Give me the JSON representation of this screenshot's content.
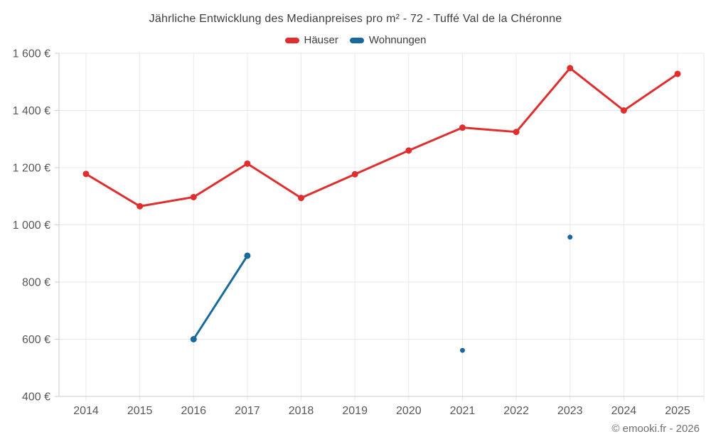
{
  "copyright": "© emooki.fr - 2026",
  "colors": {
    "hauser": "#e02e2e",
    "wohnungen": "#17699e",
    "grid": "#e8e8e8",
    "axis": "#cccccc",
    "axis_text": "#585858",
    "title_text": "#3c3c3c"
  },
  "chart_data": {
    "type": "line",
    "title": "Jährliche Entwicklung des Medianpreises pro m² - 72 - Tuffé Val de la Chéronne",
    "xlabel": "",
    "ylabel": "",
    "categories": [
      "2014",
      "2015",
      "2016",
      "2017",
      "2018",
      "2019",
      "2020",
      "2021",
      "2022",
      "2023",
      "2024",
      "2025"
    ],
    "series": [
      {
        "name": "Häuser",
        "color": "#e02e2e",
        "values": [
          1178,
          1065,
          1097,
          1214,
          1094,
          1177,
          1260,
          1340,
          1325,
          1548,
          1400,
          1528
        ]
      },
      {
        "name": "Wohnungen",
        "color": "#17699e",
        "values": [
          null,
          null,
          600,
          892,
          null,
          null,
          null,
          561,
          null,
          957,
          null,
          null
        ]
      }
    ],
    "ylim": [
      400,
      1600
    ],
    "yticks": [
      {
        "value": 400,
        "label": "400 €"
      },
      {
        "value": 600,
        "label": "600 €"
      },
      {
        "value": 800,
        "label": "800 €"
      },
      {
        "value": 1000,
        "label": "1 000 €"
      },
      {
        "value": 1200,
        "label": "1 200 €"
      },
      {
        "value": 1400,
        "label": "1 400 €"
      },
      {
        "value": 1600,
        "label": "1 600 €"
      }
    ],
    "grid": true,
    "legend_position": "top"
  }
}
